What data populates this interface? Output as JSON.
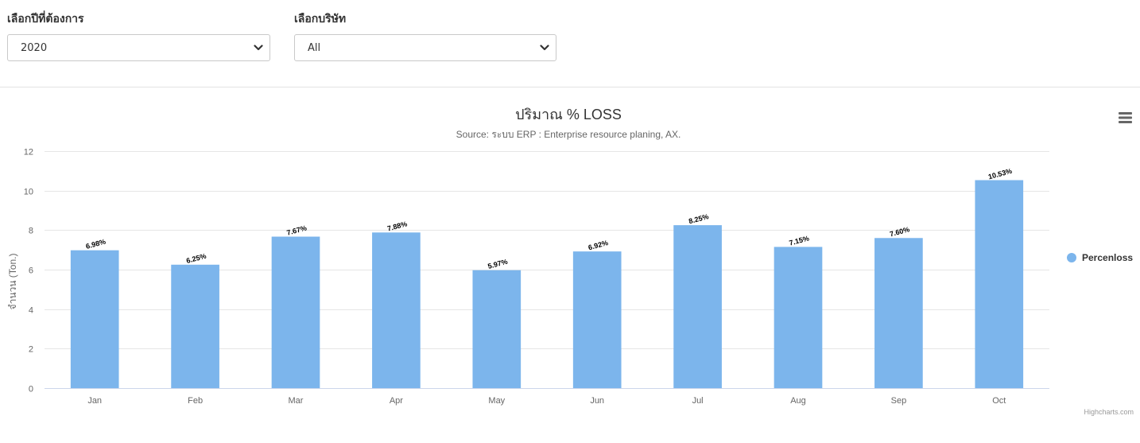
{
  "filters": {
    "year": {
      "label": "เลือกปีที่ต้องการ",
      "value": "2020"
    },
    "company": {
      "label": "เลือกบริษัท",
      "value": "All"
    }
  },
  "chart_menu_icon": "hamburger-menu-icon",
  "credit": "Highcharts.com",
  "colors": {
    "bar": "#7cb5ec",
    "grid": "#e6e6e6",
    "axis": "#ccd6eb"
  },
  "chart_data": {
    "type": "bar",
    "title": "ปริมาณ % LOSS",
    "subtitle": "Source: ระบบ ERP : Enterprise resource planing, AX.",
    "ylabel": "จำนวน (Ton.)",
    "xlabel": "",
    "ylim": [
      0,
      12
    ],
    "yticks": [
      0,
      2,
      4,
      6,
      8,
      10,
      12
    ],
    "grid": true,
    "legend_position": "right",
    "categories": [
      "Jan",
      "Feb",
      "Mar",
      "Apr",
      "May",
      "Jun",
      "Jul",
      "Aug",
      "Sep",
      "Oct"
    ],
    "series": [
      {
        "name": "Percenloss",
        "values": [
          6.98,
          6.25,
          7.67,
          7.88,
          5.97,
          6.92,
          8.25,
          7.15,
          7.6,
          10.53
        ],
        "labels": [
          "6.98%",
          "6.25%",
          "7.67%",
          "7.88%",
          "5.97%",
          "6.92%",
          "8.25%",
          "7.15%",
          "7.60%",
          "10.53%"
        ]
      }
    ]
  }
}
